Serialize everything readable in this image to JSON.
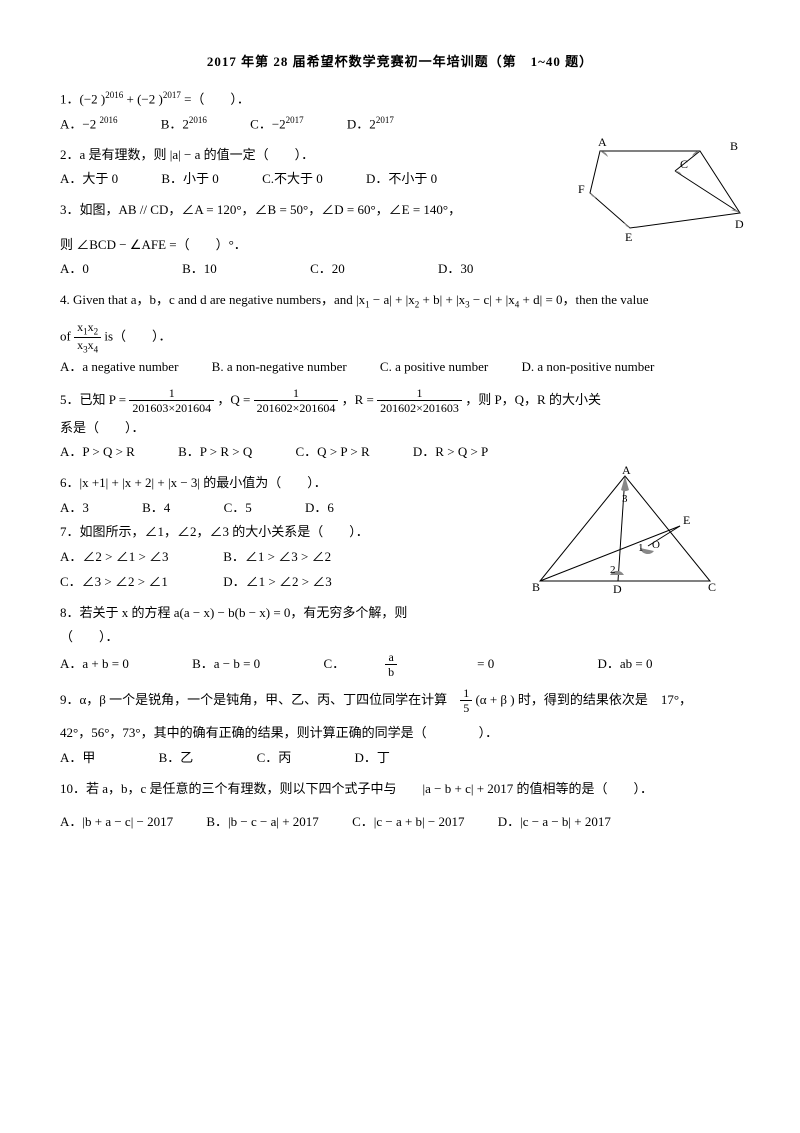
{
  "title": "2017 年第 28 届希望杯数学竞赛初一年培训题（第　1~40 题）",
  "q1": {
    "stem": "1．(−2 )<sup>2016</sup> + (−2 )<sup>2017</sup> =（　　）．",
    "A": "A．−2 <sup>2016</sup>",
    "B": "B．2<sup>2016</sup>",
    "C": "C．−2<sup>2017</sup>",
    "D": "D．2<sup>2017</sup>"
  },
  "q2": {
    "stem": "2．a 是有理数，则 |a| − a 的值一定（　　）．",
    "A": "A．大于 0",
    "B": "B．小于 0",
    "C": "C.不大于 0",
    "D": "D．不小于 0"
  },
  "q3": {
    "stem1": "3．如图，AB // CD，∠A = 120°，∠B = 50°，∠D = 60°，∠E = 140°，",
    "stem2": "则 ∠BCD − ∠AFE =（　　）°．",
    "A": "A．0",
    "B": "B．10",
    "C": "C．20",
    "D": "D．30"
  },
  "fig1": {
    "labels": {
      "A": "A",
      "B": "B",
      "C": "C",
      "D": "D",
      "E": "E",
      "F": "F"
    }
  },
  "q4": {
    "stem": "4. Given that a，b，c and d are negative numbers，and |x<sub>1</sub> − a| + |x<sub>2</sub> + b| + |x<sub>3</sub> − c| + |x<sub>4</sub> + d| = 0，then the value",
    "of": "of",
    "fracnum": "x<sub>1</sub>x<sub>2</sub>",
    "fracden": "x<sub>3</sub>x<sub>4</sub>",
    "is": "is（　　）．",
    "A": "A．a negative number",
    "B": "B. a non-negative number",
    "C": "C. a positive number",
    "D": "D. a non-positive number"
  },
  "q5": {
    "pre": "5．已知 P =",
    "p1n": "1",
    "p1d": "201603×201604",
    "q": "，Q =",
    "p2n": "1",
    "p2d": "201602×201604",
    "r": "，R =",
    "p3n": "1",
    "p3d": "201602×201603",
    "post": "，则 P，Q，R 的大小关",
    "line2": "系是（　　）．",
    "A": "A．P > Q > R",
    "B": "B．P > R > Q",
    "C": "C．Q > P > R",
    "D": "D．R > Q > P"
  },
  "q6": {
    "stem": "6．|x +1| + |x + 2| + |x − 3| 的最小值为（　　）．",
    "A": "A．3",
    "B": "B．4",
    "C": "C．5",
    "D": "D．6"
  },
  "q7": {
    "stem": "7．如图所示，∠1，∠2，∠3 的大小关系是（　　）．",
    "A": "A．∠2 > ∠1 > ∠3",
    "B": "B．∠1 > ∠3 > ∠2",
    "C": "C．∠3 > ∠2 > ∠1",
    "D": "D．∠1 > ∠2 > ∠3"
  },
  "fig2": {
    "labels": {
      "A": "A",
      "B": "B",
      "C": "C",
      "D": "D",
      "E": "E",
      "O": "O",
      "1": "1",
      "2": "2",
      "3": "3"
    }
  },
  "q8": {
    "stem": "8．若关于 x 的方程 a(a − x) − b(b − x) = 0，有无穷多个解，则",
    "stem2": "（　　）．",
    "A": "A．a + b = 0",
    "B": "B．a − b = 0",
    "Cpre": "C．",
    "Cn": "a",
    "Cd": "b",
    "Cpost": " = 0",
    "D": "D．ab = 0"
  },
  "q9": {
    "stem": "9．α，β 一个是锐角，一个是钝角，甲、乙、丙、丁四位同学在计算",
    "fracn": "1",
    "fracd": "5",
    "post": "(α + β ) 时，得到的结果依次是　17°，",
    "line2": "42°，56°，73°，其中的确有正确的结果，则计算正确的同学是（　　　　）．",
    "A": "A．甲",
    "B": "B．乙",
    "C": "C．丙",
    "D": "D．丁"
  },
  "q10": {
    "stem": "10．若 a，b，c 是任意的三个有理数，则以下四个式子中与　　|a − b + c| + 2017 的值相等的是（　　）．",
    "A": "A．|b + a − c| − 2017",
    "B": "B．|b − c − a| + 2017",
    "C": "C．|c − a + b| − 2017",
    "D": "D．|c − a − b| + 2017"
  }
}
